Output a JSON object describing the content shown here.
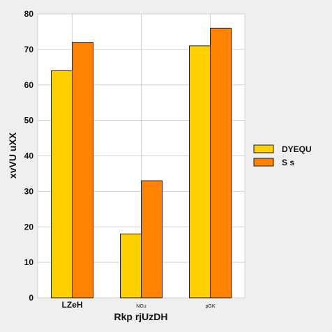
{
  "chart_data": {
    "type": "bar",
    "title": "",
    "xlabel": "Rkp rjUzDH",
    "ylabel": "xvVU uXX",
    "categories": [
      "LZeH",
      "NGu",
      "pGK"
    ],
    "series": [
      {
        "name": "DYEQU",
        "values": [
          64,
          18,
          71
        ],
        "color": "#ffd000"
      },
      {
        "name": "S s",
        "values": [
          72,
          33,
          76
        ],
        "color": "#ff8200"
      }
    ],
    "ylim": [
      0,
      80
    ],
    "yticks": [
      0,
      10,
      20,
      30,
      40,
      50,
      60,
      70,
      80
    ],
    "grid": true,
    "legend_position": "right"
  },
  "colors": {
    "background": "#efefef",
    "plot_background": "#ffffff",
    "grid": "#d0d0d0",
    "bar_edge": "#1a1a1a"
  }
}
